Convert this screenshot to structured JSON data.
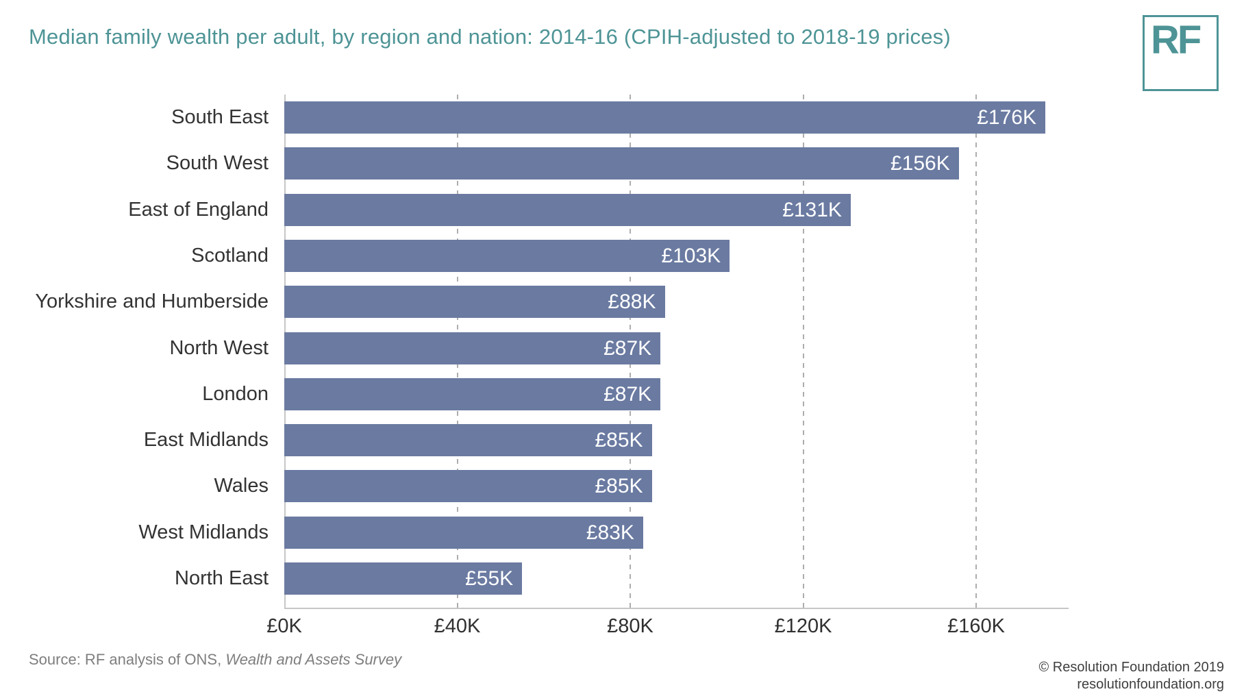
{
  "header": {
    "title": "Median family wealth per adult, by region and nation: 2014-16 (CPIH-adjusted to 2018-19 prices)",
    "logo_text": "RF"
  },
  "chart_data": {
    "type": "bar",
    "orientation": "horizontal",
    "title": "Median family wealth per adult, by region and nation: 2014-16 (CPIH-adjusted to 2018-19 prices)",
    "categories": [
      "South East",
      "South West",
      "East of England",
      "Scotland",
      "Yorkshire and Humberside",
      "North West",
      "London",
      "East Midlands",
      "Wales",
      "West Midlands",
      "North East"
    ],
    "values": [
      176,
      156,
      131,
      103,
      88,
      87,
      87,
      85,
      85,
      83,
      55
    ],
    "value_labels": [
      "£176K",
      "£156K",
      "£131K",
      "£103K",
      "£88K",
      "£87K",
      "£87K",
      "£85K",
      "£85K",
      "£83K",
      "£55K"
    ],
    "unit": "£K (thousands of pounds)",
    "xlim": [
      0,
      180
    ],
    "x_ticks": [
      {
        "value": 0,
        "label": "£0K"
      },
      {
        "value": 40,
        "label": "£40K"
      },
      {
        "value": 80,
        "label": "£80K"
      },
      {
        "value": 120,
        "label": "£120K"
      },
      {
        "value": 160,
        "label": "£160K"
      }
    ],
    "grid": "dashed-vertical-gridlines",
    "legend": "none",
    "bar_color": "#6a7aa1",
    "value_label_color": "#ffffff"
  },
  "footer": {
    "source_prefix": "Source: RF analysis of ONS, ",
    "source_italic": "Wealth and Assets Survey",
    "copyright": "© Resolution Foundation 2019",
    "website": "resolutionfoundation.org"
  },
  "colors": {
    "accent_teal": "#4e9496",
    "bar": "#6a7aa1",
    "gridline": "#adadad",
    "axis_line": "#c6c6c6"
  }
}
